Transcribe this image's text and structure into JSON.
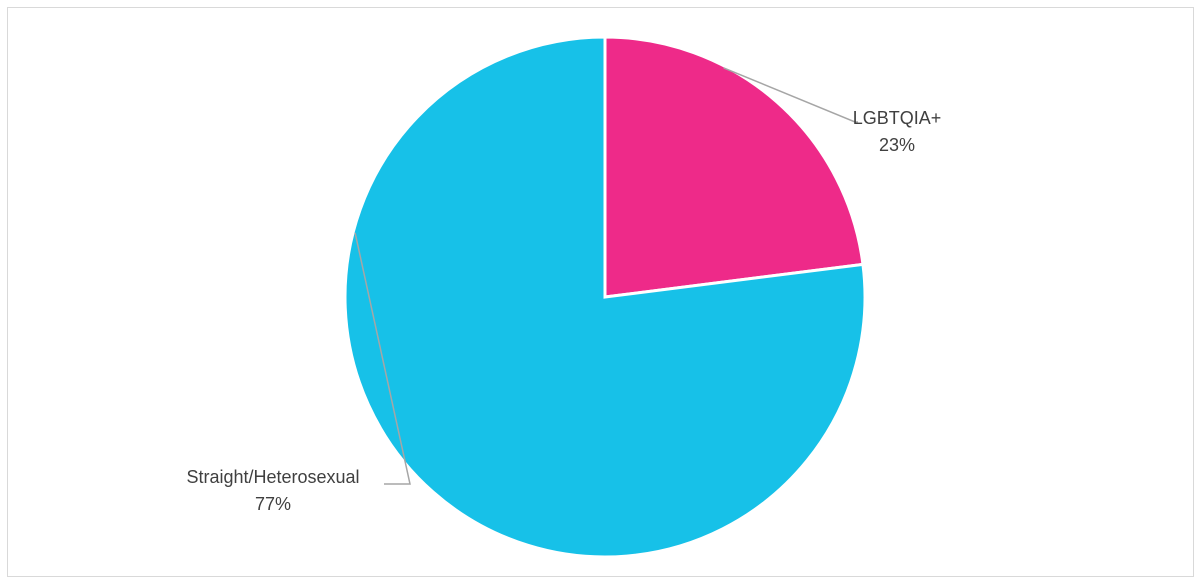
{
  "chart_data": {
    "type": "pie",
    "title": "",
    "slices": [
      {
        "label": "LGBTQIA+",
        "value": 23,
        "percent_label": "23%",
        "color": "#EE2A89"
      },
      {
        "label": "Straight/Heterosexual",
        "value": 77,
        "percent_label": "77%",
        "color": "#17C1E8"
      }
    ],
    "start_angle_deg": 0,
    "direction": "clockwise",
    "slice_border_color": "#FFFFFF",
    "leader_line_color": "#A6A6A6",
    "label_color": "#404040"
  }
}
